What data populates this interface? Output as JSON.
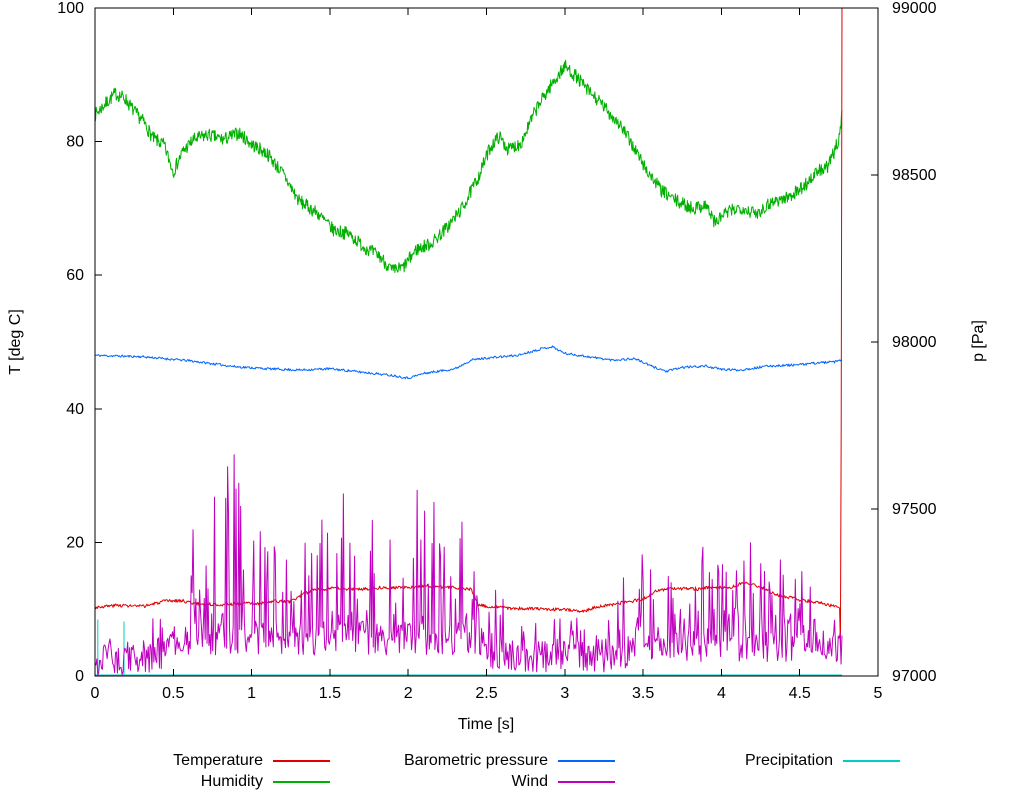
{
  "figure": {
    "background": "#ffffff"
  },
  "chart_data": {
    "type": "line",
    "title": "",
    "xlabel": "Time [s]",
    "ylabel": "T [deg C]",
    "y2label": "p [Pa]",
    "xlim": [
      0,
      5
    ],
    "ylim": [
      0,
      100
    ],
    "y2lim": [
      97000,
      99000
    ],
    "xticks": [
      "0",
      "0.5",
      "1",
      "1.5",
      "2",
      "2.5",
      "3",
      "3.5",
      "4",
      "4.5",
      "5"
    ],
    "yticks": [
      "0",
      "20",
      "40",
      "60",
      "80",
      "100"
    ],
    "y2ticks": [
      "97000",
      "97500",
      "98000",
      "98500",
      "99000"
    ],
    "x_data_end": 4.77,
    "grid": false,
    "legend": {
      "position": "bottom",
      "columns": 3,
      "items": [
        {
          "label": "Temperature",
          "color": "#e00000"
        },
        {
          "label": "Barometric pressure",
          "color": "#0066ff"
        },
        {
          "label": "Precipitation",
          "color": "#00cccc"
        },
        {
          "label": "Humidity",
          "color": "#00b000"
        },
        {
          "label": "Wind",
          "color": "#bf00bf"
        }
      ]
    },
    "series": [
      {
        "name": "Temperature",
        "color": "#e00000",
        "axis": "y",
        "samples": 950,
        "noise": 0.25,
        "seed": 3,
        "keypoints": [
          [
            0,
            10.3
          ],
          [
            0.15,
            10.6
          ],
          [
            0.3,
            10.4
          ],
          [
            0.45,
            11.2
          ],
          [
            0.55,
            11.3
          ],
          [
            0.65,
            10.8
          ],
          [
            0.8,
            10.7
          ],
          [
            0.95,
            10.9
          ],
          [
            1.05,
            10.8
          ],
          [
            1.15,
            11.2
          ],
          [
            1.25,
            11.1
          ],
          [
            1.3,
            11.9
          ],
          [
            1.4,
            13.0
          ],
          [
            1.55,
            13.1
          ],
          [
            1.7,
            13.0
          ],
          [
            1.85,
            13.3
          ],
          [
            2.0,
            13.2
          ],
          [
            2.1,
            13.5
          ],
          [
            2.25,
            13.3
          ],
          [
            2.4,
            13.0
          ],
          [
            2.45,
            10.6
          ],
          [
            2.55,
            10.3
          ],
          [
            2.7,
            10.1
          ],
          [
            2.9,
            10.0
          ],
          [
            3.05,
            9.9
          ],
          [
            3.1,
            9.6
          ],
          [
            3.2,
            10.3
          ],
          [
            3.35,
            10.9
          ],
          [
            3.5,
            11.5
          ],
          [
            3.6,
            12.9
          ],
          [
            3.7,
            13.1
          ],
          [
            3.85,
            13.0
          ],
          [
            3.95,
            13.3
          ],
          [
            4.05,
            13.2
          ],
          [
            4.15,
            14.1
          ],
          [
            4.25,
            13.3
          ],
          [
            4.35,
            12.2
          ],
          [
            4.5,
            11.4
          ],
          [
            4.62,
            11.0
          ],
          [
            4.72,
            10.4
          ],
          [
            4.757,
            10.3
          ],
          [
            4.762,
            0.6
          ],
          [
            4.77,
            100
          ]
        ]
      },
      {
        "name": "Humidity",
        "color": "#00b000",
        "axis": "y",
        "samples": 1300,
        "noise": 1.0,
        "seed": 7,
        "keypoints": [
          [
            0,
            84
          ],
          [
            0.06,
            85.5
          ],
          [
            0.13,
            87.2
          ],
          [
            0.19,
            86.5
          ],
          [
            0.25,
            84.5
          ],
          [
            0.31,
            83
          ],
          [
            0.37,
            80.5
          ],
          [
            0.44,
            79.5
          ],
          [
            0.5,
            75.5
          ],
          [
            0.56,
            78.5
          ],
          [
            0.63,
            80.3
          ],
          [
            0.72,
            81
          ],
          [
            0.82,
            80.3
          ],
          [
            0.92,
            81.3
          ],
          [
            1.0,
            79.6
          ],
          [
            1.1,
            78.2
          ],
          [
            1.2,
            75.2
          ],
          [
            1.3,
            71.2
          ],
          [
            1.42,
            69.3
          ],
          [
            1.52,
            66.8
          ],
          [
            1.62,
            66.2
          ],
          [
            1.72,
            64.2
          ],
          [
            1.82,
            62.8
          ],
          [
            1.9,
            60.6
          ],
          [
            1.97,
            61.2
          ],
          [
            2.05,
            63.8
          ],
          [
            2.15,
            64.8
          ],
          [
            2.25,
            67.2
          ],
          [
            2.35,
            70.2
          ],
          [
            2.45,
            74.8
          ],
          [
            2.52,
            79
          ],
          [
            2.58,
            80.8
          ],
          [
            2.64,
            78.8
          ],
          [
            2.72,
            79.8
          ],
          [
            2.82,
            85
          ],
          [
            2.9,
            88
          ],
          [
            3.0,
            91.3
          ],
          [
            3.07,
            89.8
          ],
          [
            3.15,
            87.6
          ],
          [
            3.25,
            85.2
          ],
          [
            3.35,
            82.6
          ],
          [
            3.45,
            78.8
          ],
          [
            3.52,
            75.8
          ],
          [
            3.62,
            72.6
          ],
          [
            3.72,
            71
          ],
          [
            3.82,
            70
          ],
          [
            3.9,
            70.6
          ],
          [
            3.96,
            67.8
          ],
          [
            4.02,
            69.2
          ],
          [
            4.12,
            70.2
          ],
          [
            4.22,
            69.2
          ],
          [
            4.32,
            71
          ],
          [
            4.42,
            71.6
          ],
          [
            4.52,
            73.2
          ],
          [
            4.62,
            75.6
          ],
          [
            4.68,
            76.2
          ],
          [
            4.72,
            78.4
          ],
          [
            4.75,
            80.5
          ],
          [
            4.77,
            84
          ]
        ]
      },
      {
        "name": "Barometric pressure",
        "color": "#0066ff",
        "axis": "y2",
        "samples": 900,
        "noise": 3.5,
        "seed": 11,
        "keypoints": [
          [
            0,
            97960
          ],
          [
            0.3,
            97956
          ],
          [
            0.6,
            97944
          ],
          [
            0.9,
            97926
          ],
          [
            1.1,
            97920
          ],
          [
            1.3,
            97916
          ],
          [
            1.5,
            97920
          ],
          [
            1.7,
            97910
          ],
          [
            1.9,
            97900
          ],
          [
            2.0,
            97892
          ],
          [
            2.1,
            97906
          ],
          [
            2.3,
            97920
          ],
          [
            2.4,
            97946
          ],
          [
            2.5,
            97952
          ],
          [
            2.7,
            97960
          ],
          [
            2.85,
            97980
          ],
          [
            2.92,
            97986
          ],
          [
            3.0,
            97966
          ],
          [
            3.12,
            97958
          ],
          [
            3.3,
            97946
          ],
          [
            3.45,
            97950
          ],
          [
            3.55,
            97928
          ],
          [
            3.65,
            97912
          ],
          [
            3.75,
            97924
          ],
          [
            3.9,
            97928
          ],
          [
            4.0,
            97918
          ],
          [
            4.12,
            97916
          ],
          [
            4.3,
            97928
          ],
          [
            4.5,
            97932
          ],
          [
            4.62,
            97938
          ],
          [
            4.72,
            97940
          ],
          [
            4.77,
            97946
          ]
        ]
      },
      {
        "name": "Wind",
        "color": "#bf00bf",
        "axis": "y",
        "samples": 800,
        "noise": 2.4,
        "seed": 23,
        "spike_prob": 0.5,
        "spike_pow": 2.5,
        "keypoints": [
          [
            0,
            2.5
          ],
          [
            0.42,
            2.5
          ],
          [
            0.5,
            5.5
          ],
          [
            2.45,
            5.5
          ],
          [
            2.55,
            3
          ],
          [
            3.35,
            3
          ],
          [
            3.45,
            4.5
          ],
          [
            4.6,
            4.5
          ],
          [
            4.77,
            4
          ]
        ],
        "spike_env": [
          [
            0,
            4
          ],
          [
            0.42,
            5
          ],
          [
            0.5,
            17
          ],
          [
            0.65,
            22
          ],
          [
            0.85,
            27
          ],
          [
            0.95,
            24
          ],
          [
            1.1,
            16
          ],
          [
            1.25,
            13
          ],
          [
            1.4,
            16
          ],
          [
            1.55,
            20
          ],
          [
            1.65,
            22
          ],
          [
            1.8,
            17
          ],
          [
            1.95,
            23
          ],
          [
            2.1,
            23
          ],
          [
            2.25,
            22
          ],
          [
            2.4,
            21
          ],
          [
            2.5,
            9
          ],
          [
            2.7,
            7
          ],
          [
            3.0,
            8
          ],
          [
            3.3,
            7
          ],
          [
            3.42,
            19
          ],
          [
            3.55,
            14
          ],
          [
            3.65,
            11
          ],
          [
            3.8,
            15
          ],
          [
            3.95,
            15
          ],
          [
            4.1,
            13
          ],
          [
            4.2,
            16
          ],
          [
            4.35,
            11
          ],
          [
            4.5,
            13
          ],
          [
            4.6,
            11
          ],
          [
            4.7,
            14
          ],
          [
            4.77,
            7
          ]
        ]
      },
      {
        "name": "Precipitation",
        "color": "#00cccc",
        "axis": "y",
        "type": "baseline_spikes",
        "baseline_value": 0.15,
        "spikes": [
          [
            0.018,
            8.4
          ],
          [
            0.185,
            8.1
          ]
        ]
      }
    ]
  }
}
